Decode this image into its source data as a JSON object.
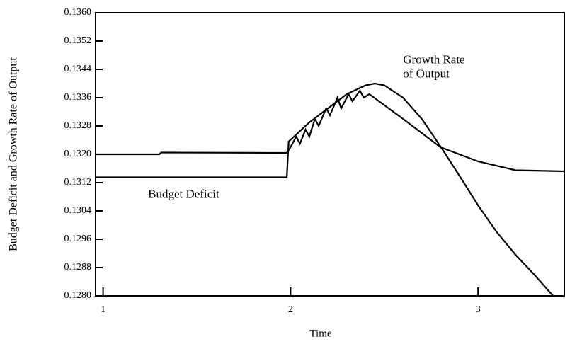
{
  "chart_data": {
    "type": "line",
    "x_label": "Time",
    "y_label": "Budget Deficit and Growth Rate of Output",
    "annotations": [
      {
        "text": "Growth Rate",
        "x": 2.6,
        "y": 0.13465
      },
      {
        "text": "of Output",
        "x": 2.6,
        "y": 0.13425
      },
      {
        "text": "Budget Deficit",
        "x": 1.24,
        "y": 0.13085
      }
    ],
    "xlim": [
      0.96,
      3.46
    ],
    "xticks": [
      1,
      2,
      3
    ],
    "ylim": [
      0.128,
      0.136
    ],
    "yticks": [
      {
        "value": 0.128,
        "label": "0.1280"
      },
      0.1288,
      0.1296,
      0.1304,
      0.1312,
      {
        "value": 0.132,
        "label": "0.1320"
      },
      0.1328,
      0.1336,
      0.1344,
      0.1352,
      {
        "value": 0.136,
        "label": "0.1360"
      }
    ],
    "grid": false,
    "series": [
      {
        "name": "Budget Deficit",
        "color": "#000000",
        "x": [
          0.96,
          1.98,
          1.99,
          2.1,
          2.2,
          2.3,
          2.4,
          2.45,
          2.5,
          2.6,
          2.7,
          2.8,
          2.9,
          3.0,
          3.1,
          3.2,
          3.3,
          3.4
        ],
        "values": [
          0.13135,
          0.13135,
          0.13236,
          0.1329,
          0.1333,
          0.1337,
          0.13395,
          0.134,
          0.13395,
          0.1336,
          0.133,
          0.13222,
          0.1314,
          0.13056,
          0.1298,
          0.12916,
          0.1286,
          0.128
        ]
      },
      {
        "name": "Growth Rate of Output",
        "color": "#000000",
        "x": [
          0.96,
          1.3,
          1.31,
          1.98,
          2.0,
          2.03,
          2.05,
          2.08,
          2.1,
          2.13,
          2.15,
          2.19,
          2.21,
          2.25,
          2.27,
          2.31,
          2.33,
          2.37,
          2.39,
          2.42,
          2.6,
          2.8,
          3.0,
          3.2,
          3.46
        ],
        "values": [
          0.132,
          0.132,
          0.13205,
          0.13204,
          0.1322,
          0.1325,
          0.1323,
          0.1327,
          0.1325,
          0.133,
          0.1328,
          0.1333,
          0.1331,
          0.1336,
          0.1333,
          0.1337,
          0.1335,
          0.1338,
          0.1336,
          0.1337,
          0.133,
          0.1322,
          0.1318,
          0.13155,
          0.13152
        ]
      }
    ]
  }
}
